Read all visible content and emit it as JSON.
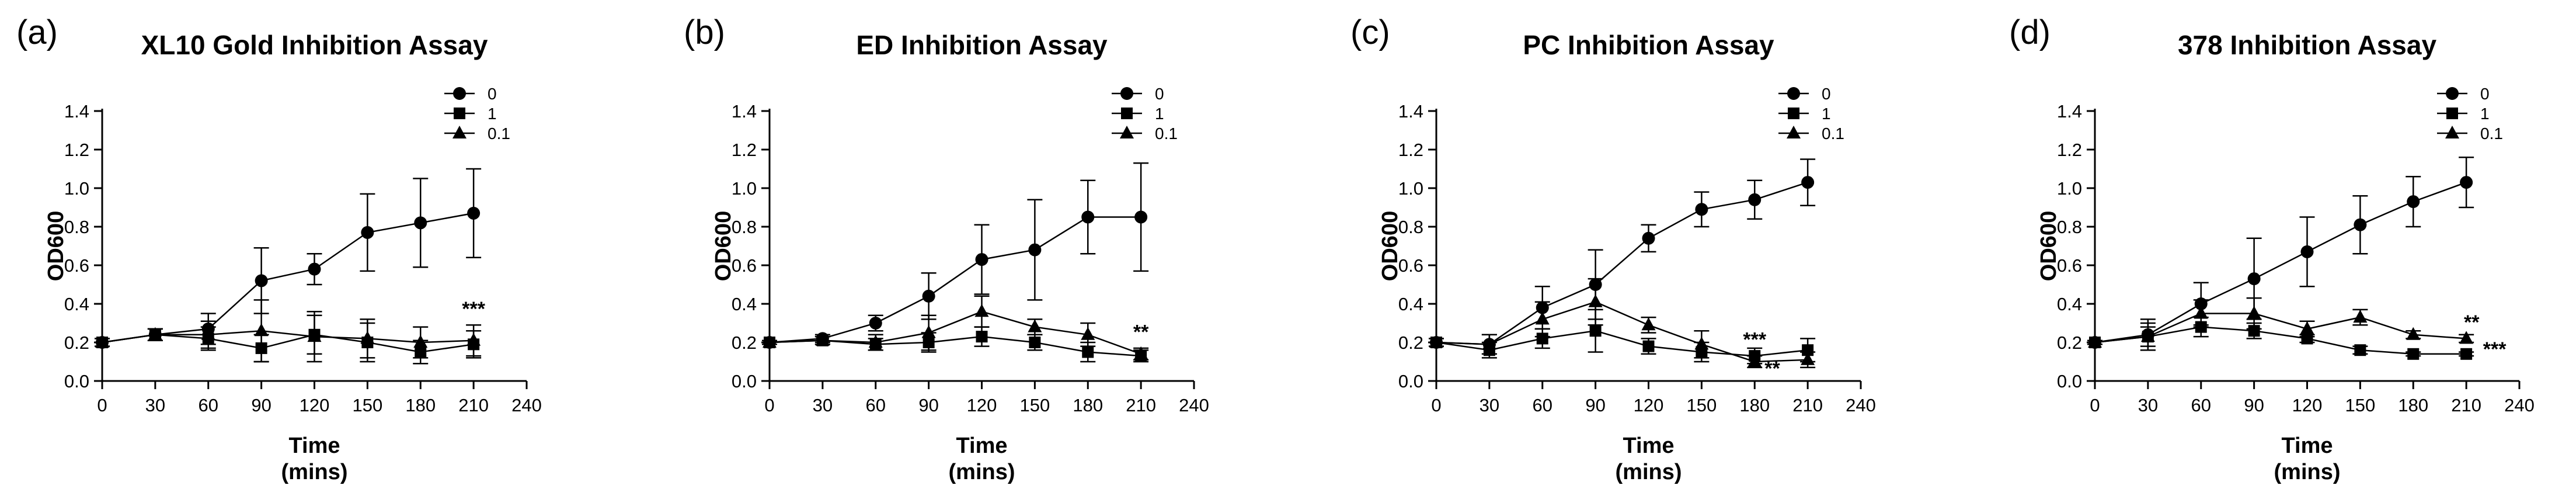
{
  "chart_data": [
    {
      "type": "line",
      "panel": "(a)",
      "title": "XL10 Gold Inhibition Assay",
      "ylabel": "OD600",
      "xlabel": [
        "Time",
        "(mins)"
      ],
      "xlim": [
        0,
        240
      ],
      "ylim": [
        0,
        1.4
      ],
      "xticks": [
        0,
        30,
        60,
        90,
        120,
        150,
        180,
        210,
        240
      ],
      "yticks": [
        "0.0",
        "0.2",
        "0.4",
        "0.6",
        "0.8",
        "1.0",
        "1.2",
        "1.4"
      ],
      "x": [
        0,
        30,
        60,
        90,
        120,
        150,
        180,
        210
      ],
      "legend_position": "top-right",
      "series": [
        {
          "name": "0",
          "marker": "circle",
          "values": [
            0.2,
            0.24,
            0.27,
            0.52,
            0.58,
            0.77,
            0.82,
            0.87
          ],
          "errors": [
            0.02,
            0.03,
            0.08,
            0.17,
            0.08,
            0.2,
            0.23,
            0.23
          ]
        },
        {
          "name": "1",
          "marker": "square",
          "values": [
            0.2,
            0.24,
            0.22,
            0.17,
            0.24,
            0.2,
            0.15,
            0.19
          ],
          "errors": [
            0.02,
            0.03,
            0.06,
            0.07,
            0.1,
            0.1,
            0.06,
            0.07
          ]
        },
        {
          "name": "0.1",
          "marker": "triangle",
          "values": [
            0.2,
            0.24,
            0.24,
            0.26,
            0.23,
            0.22,
            0.2,
            0.21
          ],
          "errors": [
            0.02,
            0.03,
            0.07,
            0.16,
            0.13,
            0.1,
            0.08,
            0.08
          ]
        }
      ],
      "annotations": [
        {
          "text": "***",
          "x": 210,
          "y": 0.34
        }
      ]
    },
    {
      "type": "line",
      "panel": "(b)",
      "title": "ED Inhibition Assay",
      "ylabel": "OD600",
      "xlabel": [
        "Time",
        "(mins)"
      ],
      "xlim": [
        0,
        240
      ],
      "ylim": [
        0,
        1.4
      ],
      "xticks": [
        0,
        30,
        60,
        90,
        120,
        150,
        180,
        210,
        240
      ],
      "yticks": [
        "0.0",
        "0.2",
        "0.4",
        "0.6",
        "0.8",
        "1.0",
        "1.2",
        "1.4"
      ],
      "x": [
        0,
        30,
        60,
        90,
        120,
        150,
        180,
        210
      ],
      "legend_position": "top-right",
      "series": [
        {
          "name": "0",
          "marker": "circle",
          "values": [
            0.2,
            0.22,
            0.3,
            0.44,
            0.63,
            0.68,
            0.85,
            0.85
          ],
          "errors": [
            0.01,
            0.02,
            0.04,
            0.12,
            0.18,
            0.26,
            0.19,
            0.28
          ]
        },
        {
          "name": "1",
          "marker": "square",
          "values": [
            0.2,
            0.21,
            0.19,
            0.2,
            0.23,
            0.2,
            0.15,
            0.13
          ],
          "errors": [
            0.01,
            0.02,
            0.03,
            0.05,
            0.05,
            0.04,
            0.05,
            0.03
          ]
        },
        {
          "name": "0.1",
          "marker": "triangle",
          "values": [
            0.2,
            0.21,
            0.2,
            0.25,
            0.36,
            0.28,
            0.24,
            0.14
          ],
          "errors": [
            0.01,
            0.02,
            0.04,
            0.09,
            0.08,
            0.04,
            0.06,
            0.03
          ]
        }
      ],
      "annotations": [
        {
          "text": "**",
          "x": 210,
          "y": 0.22
        }
      ]
    },
    {
      "type": "line",
      "panel": "(c)",
      "title": "PC Inhibition Assay",
      "ylabel": "OD600",
      "xlabel": [
        "Time",
        "(mins)"
      ],
      "xlim": [
        0,
        240
      ],
      "ylim": [
        0,
        1.4
      ],
      "xticks": [
        0,
        30,
        60,
        90,
        120,
        150,
        180,
        210,
        240
      ],
      "yticks": [
        "0.0",
        "0.2",
        "0.4",
        "0.6",
        "0.8",
        "1.0",
        "1.2",
        "1.4"
      ],
      "x": [
        0,
        30,
        60,
        90,
        120,
        150,
        180,
        210
      ],
      "legend_position": "top-right",
      "series": [
        {
          "name": "0",
          "marker": "circle",
          "values": [
            0.2,
            0.19,
            0.38,
            0.5,
            0.74,
            0.89,
            0.94,
            1.03
          ],
          "errors": [
            0.02,
            0.05,
            0.11,
            0.18,
            0.07,
            0.09,
            0.1,
            0.12
          ]
        },
        {
          "name": "1",
          "marker": "square",
          "values": [
            0.2,
            0.16,
            0.22,
            0.26,
            0.18,
            0.15,
            0.13,
            0.16
          ],
          "errors": [
            0.02,
            0.04,
            0.05,
            0.11,
            0.04,
            0.05,
            0.04,
            0.06
          ]
        },
        {
          "name": "0.1",
          "marker": "triangle",
          "values": [
            0.2,
            0.19,
            0.32,
            0.41,
            0.29,
            0.19,
            0.1,
            0.11
          ],
          "errors": [
            0.02,
            0.05,
            0.09,
            0.12,
            0.04,
            0.07,
            0.03,
            0.04
          ]
        }
      ],
      "annotations": [
        {
          "text": "***",
          "x": 180,
          "y": 0.18
        },
        {
          "text": "**",
          "x": 190,
          "y": 0.03
        }
      ]
    },
    {
      "type": "line",
      "panel": "(d)",
      "title": "378 Inhibition Assay",
      "ylabel": "OD600",
      "xlabel": [
        "Time",
        "(mins)"
      ],
      "xlim": [
        0,
        240
      ],
      "ylim": [
        0,
        1.4
      ],
      "xticks": [
        0,
        30,
        60,
        90,
        120,
        150,
        180,
        210,
        240
      ],
      "yticks": [
        "0.0",
        "0.2",
        "0.4",
        "0.6",
        "0.8",
        "1.0",
        "1.2",
        "1.4"
      ],
      "x": [
        0,
        30,
        60,
        90,
        120,
        150,
        180,
        210
      ],
      "legend_position": "top-right",
      "series": [
        {
          "name": "0",
          "marker": "circle",
          "values": [
            0.2,
            0.24,
            0.4,
            0.53,
            0.67,
            0.81,
            0.93,
            1.03
          ],
          "errors": [
            0.01,
            0.08,
            0.11,
            0.21,
            0.18,
            0.15,
            0.13,
            0.13
          ]
        },
        {
          "name": "1",
          "marker": "square",
          "values": [
            0.2,
            0.23,
            0.28,
            0.26,
            0.22,
            0.16,
            0.14,
            0.14
          ],
          "errors": [
            0.01,
            0.05,
            0.05,
            0.04,
            0.02,
            0.02,
            0.01,
            0.01
          ]
        },
        {
          "name": "0.1",
          "marker": "triangle",
          "values": [
            0.2,
            0.23,
            0.35,
            0.35,
            0.27,
            0.33,
            0.24,
            0.22
          ],
          "errors": [
            0.01,
            0.07,
            0.07,
            0.08,
            0.04,
            0.04,
            0.02,
            0.02
          ]
        }
      ],
      "annotations": [
        {
          "text": "**",
          "x": 213,
          "y": 0.27
        },
        {
          "text": "***",
          "x": 226,
          "y": 0.13
        }
      ]
    }
  ]
}
